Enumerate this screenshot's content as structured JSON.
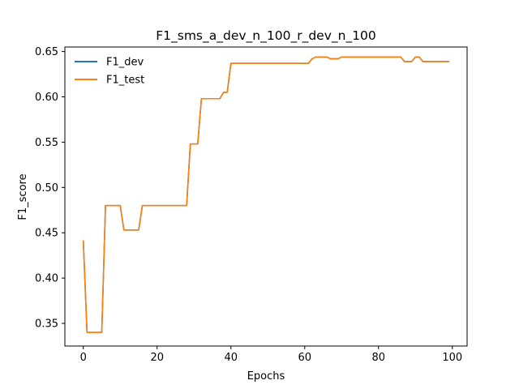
{
  "chart_data": {
    "type": "line",
    "title": "F1_sms_a_dev_n_100_r_dev_n_100",
    "xlabel": "Epochs",
    "ylabel": "F1_score",
    "xlim": [
      -5,
      104
    ],
    "ylim": [
      0.325,
      0.655
    ],
    "xticks": [
      0,
      20,
      40,
      60,
      80,
      100
    ],
    "yticks": [
      0.35,
      0.4,
      0.45,
      0.5,
      0.55,
      0.6,
      0.65
    ],
    "legend_position": "top-left",
    "x": [
      0,
      1,
      2,
      3,
      4,
      5,
      6,
      7,
      8,
      9,
      10,
      11,
      12,
      13,
      14,
      15,
      16,
      17,
      18,
      19,
      20,
      21,
      22,
      23,
      24,
      25,
      26,
      27,
      28,
      29,
      30,
      31,
      32,
      33,
      34,
      35,
      36,
      37,
      38,
      39,
      40,
      41,
      42,
      43,
      44,
      45,
      46,
      47,
      48,
      49,
      50,
      51,
      52,
      53,
      54,
      55,
      56,
      57,
      58,
      59,
      60,
      61,
      62,
      63,
      64,
      65,
      66,
      67,
      68,
      69,
      70,
      71,
      72,
      73,
      74,
      75,
      76,
      77,
      78,
      79,
      80,
      81,
      82,
      83,
      84,
      85,
      86,
      87,
      88,
      89,
      90,
      91,
      92,
      93,
      94,
      95,
      96,
      97,
      98,
      99
    ],
    "series": [
      {
        "name": "F1_dev",
        "color": "#1f77b4",
        "values": [
          0.441,
          0.34,
          0.34,
          0.34,
          0.34,
          0.34,
          0.48,
          0.48,
          0.48,
          0.48,
          0.48,
          0.453,
          0.453,
          0.453,
          0.453,
          0.453,
          0.48,
          0.48,
          0.48,
          0.48,
          0.48,
          0.48,
          0.48,
          0.48,
          0.48,
          0.48,
          0.48,
          0.48,
          0.48,
          0.548,
          0.548,
          0.548,
          0.598,
          0.598,
          0.598,
          0.598,
          0.598,
          0.598,
          0.605,
          0.605,
          0.637,
          0.637,
          0.637,
          0.637,
          0.637,
          0.637,
          0.637,
          0.637,
          0.637,
          0.637,
          0.637,
          0.637,
          0.637,
          0.637,
          0.637,
          0.637,
          0.637,
          0.637,
          0.637,
          0.637,
          0.637,
          0.637,
          0.642,
          0.644,
          0.644,
          0.644,
          0.644,
          0.642,
          0.642,
          0.642,
          0.644,
          0.644,
          0.644,
          0.644,
          0.644,
          0.644,
          0.644,
          0.644,
          0.644,
          0.644,
          0.644,
          0.644,
          0.644,
          0.644,
          0.644,
          0.644,
          0.644,
          0.639,
          0.639,
          0.639,
          0.644,
          0.644,
          0.639,
          0.639,
          0.639,
          0.639,
          0.639,
          0.639,
          0.639,
          0.639
        ]
      },
      {
        "name": "F1_test",
        "color": "#ff7f0e",
        "values": [
          0.441,
          0.34,
          0.34,
          0.34,
          0.34,
          0.34,
          0.48,
          0.48,
          0.48,
          0.48,
          0.48,
          0.453,
          0.453,
          0.453,
          0.453,
          0.453,
          0.48,
          0.48,
          0.48,
          0.48,
          0.48,
          0.48,
          0.48,
          0.48,
          0.48,
          0.48,
          0.48,
          0.48,
          0.48,
          0.548,
          0.548,
          0.548,
          0.598,
          0.598,
          0.598,
          0.598,
          0.598,
          0.598,
          0.605,
          0.605,
          0.637,
          0.637,
          0.637,
          0.637,
          0.637,
          0.637,
          0.637,
          0.637,
          0.637,
          0.637,
          0.637,
          0.637,
          0.637,
          0.637,
          0.637,
          0.637,
          0.637,
          0.637,
          0.637,
          0.637,
          0.637,
          0.637,
          0.642,
          0.644,
          0.644,
          0.644,
          0.644,
          0.642,
          0.642,
          0.642,
          0.644,
          0.644,
          0.644,
          0.644,
          0.644,
          0.644,
          0.644,
          0.644,
          0.644,
          0.644,
          0.644,
          0.644,
          0.644,
          0.644,
          0.644,
          0.644,
          0.644,
          0.639,
          0.639,
          0.639,
          0.644,
          0.644,
          0.639,
          0.639,
          0.639,
          0.639,
          0.639,
          0.639,
          0.639,
          0.639
        ]
      }
    ]
  }
}
